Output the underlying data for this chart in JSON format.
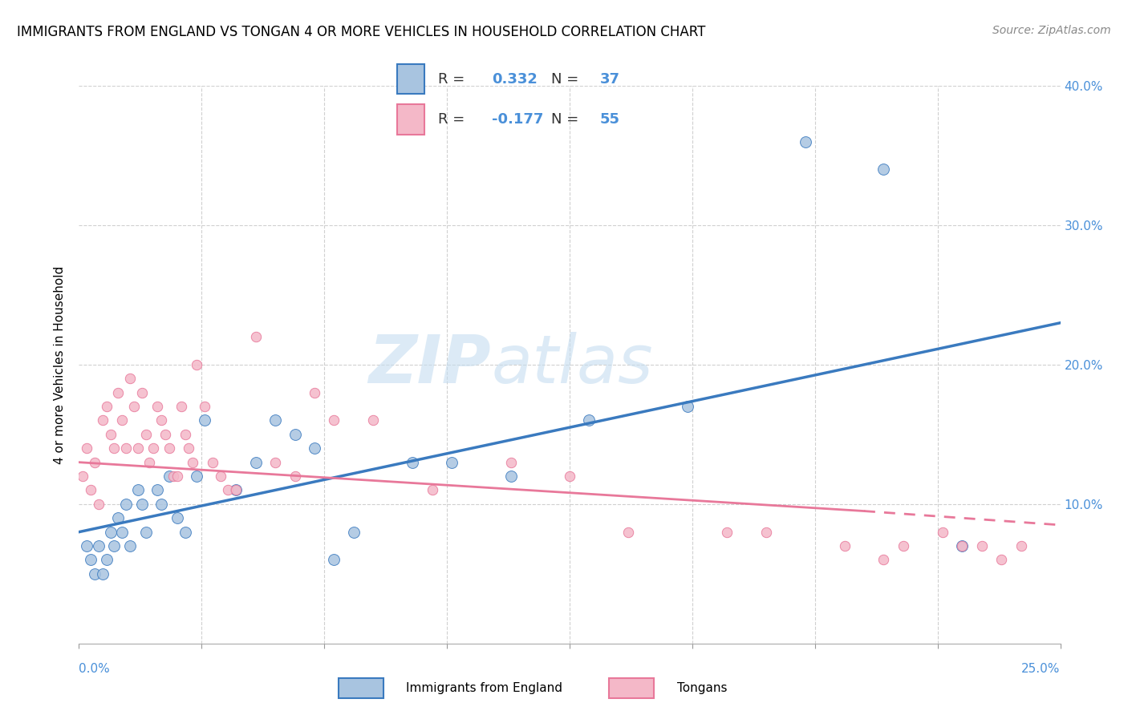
{
  "title": "IMMIGRANTS FROM ENGLAND VS TONGAN 4 OR MORE VEHICLES IN HOUSEHOLD CORRELATION CHART",
  "source": "Source: ZipAtlas.com",
  "ylabel": "4 or more Vehicles in Household",
  "xlim": [
    0,
    25
  ],
  "ylim": [
    0,
    40
  ],
  "watermark_part1": "ZIP",
  "watermark_part2": "atlas",
  "color_england": "#a8c4e0",
  "color_tongan": "#f4b8c8",
  "color_line_england": "#3a7abf",
  "color_line_tongan": "#e8789a",
  "color_axis_label": "#4a90d9",
  "ytick_vals": [
    0,
    10,
    20,
    30,
    40
  ],
  "ytick_labels": [
    "",
    "10.0%",
    "20.0%",
    "30.0%",
    "40.0%"
  ],
  "xtick_vals": [
    0,
    3.125,
    6.25,
    9.375,
    12.5,
    15.625,
    18.75,
    21.875,
    25
  ],
  "england_x": [
    0.2,
    0.3,
    0.4,
    0.5,
    0.6,
    0.7,
    0.8,
    0.9,
    1.0,
    1.1,
    1.2,
    1.3,
    1.5,
    1.6,
    1.7,
    2.0,
    2.1,
    2.3,
    2.5,
    2.7,
    3.0,
    3.2,
    4.0,
    4.5,
    5.0,
    5.5,
    6.0,
    6.5,
    7.0,
    8.5,
    9.5,
    11.0,
    13.0,
    15.5,
    18.5,
    20.5,
    22.5
  ],
  "england_y": [
    7,
    6,
    5,
    7,
    5,
    6,
    8,
    7,
    9,
    8,
    10,
    7,
    11,
    10,
    8,
    11,
    10,
    12,
    9,
    8,
    12,
    16,
    11,
    13,
    16,
    15,
    14,
    6,
    8,
    13,
    13,
    12,
    16,
    17,
    36,
    34,
    7
  ],
  "tongan_x": [
    0.1,
    0.2,
    0.3,
    0.4,
    0.5,
    0.6,
    0.7,
    0.8,
    0.9,
    1.0,
    1.1,
    1.2,
    1.3,
    1.4,
    1.5,
    1.6,
    1.7,
    1.8,
    1.9,
    2.0,
    2.1,
    2.2,
    2.3,
    2.4,
    2.5,
    2.6,
    2.7,
    2.8,
    2.9,
    3.0,
    3.2,
    3.4,
    3.6,
    3.8,
    4.0,
    4.5,
    5.0,
    5.5,
    6.0,
    6.5,
    7.5,
    9.0,
    11.0,
    12.5,
    14.0,
    16.5,
    17.5,
    19.5,
    20.5,
    21.0,
    22.0,
    22.5,
    23.0,
    23.5,
    24.0
  ],
  "tongan_y": [
    12,
    14,
    11,
    13,
    10,
    16,
    17,
    15,
    14,
    18,
    16,
    14,
    19,
    17,
    14,
    18,
    15,
    13,
    14,
    17,
    16,
    15,
    14,
    12,
    12,
    17,
    15,
    14,
    13,
    20,
    17,
    13,
    12,
    11,
    11,
    22,
    13,
    12,
    18,
    16,
    16,
    11,
    13,
    12,
    8,
    8,
    8,
    7,
    6,
    7,
    8,
    7,
    7,
    6,
    7
  ],
  "r_england": "0.332",
  "n_england": "37",
  "r_tongan": "-0.177",
  "n_tongan": "55"
}
